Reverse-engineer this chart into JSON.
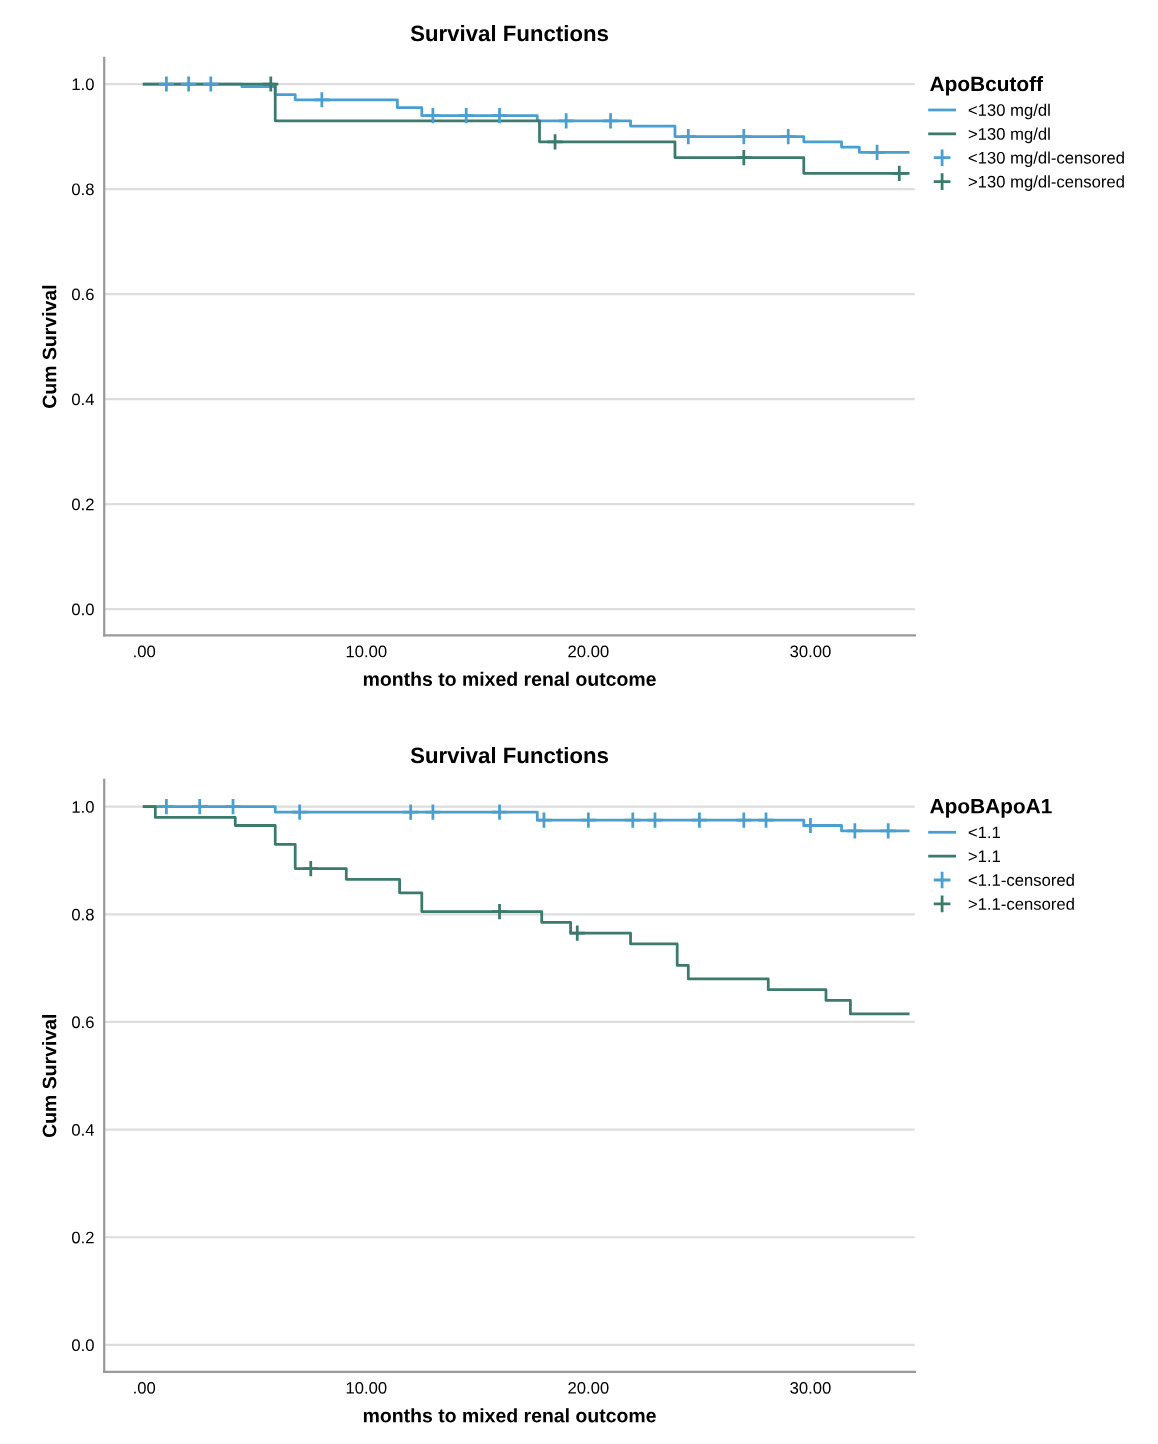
{
  "chart_data": [
    {
      "type": "step",
      "title": "Survival Functions",
      "xlabel": "months to mixed renal outcome",
      "ylabel": "Cum Survival",
      "legend_title": "ApoBcutoff",
      "legend": "right",
      "grid": "y",
      "xlim": [
        -1.8,
        34.7
      ],
      "ylim": [
        -0.05,
        1.05
      ],
      "xticks": [
        {
          "value": 0,
          "label": ".00"
        },
        {
          "value": 10,
          "label": "10.00"
        },
        {
          "value": 20,
          "label": "20.00"
        },
        {
          "value": 30,
          "label": "30.00"
        }
      ],
      "yticks": [
        {
          "value": 0,
          "label": "0.0"
        },
        {
          "value": 0.2,
          "label": "0.2"
        },
        {
          "value": 0.4,
          "label": "0.4"
        },
        {
          "value": 0.6,
          "label": "0.6"
        },
        {
          "value": 0.8,
          "label": "0.8"
        },
        {
          "value": 1,
          "label": "1.0"
        }
      ],
      "series": [
        {
          "name": "<130 mg/dl",
          "color": "#4a9fd0",
          "x": [
            0,
            4.4,
            5.9,
            6.8,
            11.4,
            12.5,
            17.7,
            21.9,
            23.9,
            29.7,
            31.4,
            32.2,
            34.4
          ],
          "values": [
            1.0,
            0.995,
            0.98,
            0.97,
            0.955,
            0.94,
            0.93,
            0.92,
            0.9,
            0.89,
            0.88,
            0.87,
            0.87
          ]
        },
        {
          "name": ">130 mg/dl",
          "color": "#3d7a6e",
          "x": [
            0,
            5.9,
            17.8,
            23.9,
            29.7,
            34.4
          ],
          "values": [
            1.0,
            0.93,
            0.89,
            0.86,
            0.83,
            0.83
          ]
        },
        {
          "name": "<130 mg/dl-censored",
          "type": "scatter",
          "marker": "cross",
          "color": "#4a9fd0",
          "x": [
            1,
            2,
            3,
            8,
            13,
            14.5,
            16,
            19,
            21,
            24.5,
            27,
            29,
            33
          ],
          "values": [
            1.0,
            1.0,
            1.0,
            0.97,
            0.94,
            0.94,
            0.94,
            0.93,
            0.93,
            0.9,
            0.9,
            0.9,
            0.87
          ]
        },
        {
          "name": ">130 mg/dl-censored",
          "type": "scatter",
          "marker": "cross",
          "color": "#3d7a6e",
          "x": [
            5.7,
            18.5,
            27,
            34
          ],
          "values": [
            1.0,
            0.89,
            0.86,
            0.83
          ]
        }
      ]
    },
    {
      "type": "step",
      "title": "Survival Functions",
      "xlabel": "months to mixed renal outcome",
      "ylabel": "Cum Survival",
      "legend_title": "ApoBApoA1",
      "legend": "right",
      "grid": "y",
      "xlim": [
        -1.8,
        34.7
      ],
      "ylim": [
        -0.05,
        1.05
      ],
      "xticks": [
        {
          "value": 0,
          "label": ".00"
        },
        {
          "value": 10,
          "label": "10.00"
        },
        {
          "value": 20,
          "label": "20.00"
        },
        {
          "value": 30,
          "label": "30.00"
        }
      ],
      "yticks": [
        {
          "value": 0,
          "label": "0.0"
        },
        {
          "value": 0.2,
          "label": "0.2"
        },
        {
          "value": 0.4,
          "label": "0.4"
        },
        {
          "value": 0.6,
          "label": "0.6"
        },
        {
          "value": 0.8,
          "label": "0.8"
        },
        {
          "value": 1,
          "label": "1.0"
        }
      ],
      "series": [
        {
          "name": "<1.1",
          "color": "#4a9fd0",
          "x": [
            0,
            5.9,
            17.7,
            29.7,
            31.4,
            34.4
          ],
          "values": [
            1.0,
            0.99,
            0.975,
            0.965,
            0.955,
            0.955
          ]
        },
        {
          "name": ">1.1",
          "color": "#3d7a6e",
          "x": [
            0,
            0.5,
            4.1,
            5.9,
            6.8,
            9.1,
            11.5,
            12.5,
            17.9,
            19.2,
            21.9,
            24.0,
            24.5,
            28.1,
            30.7,
            31.8,
            34.4
          ],
          "values": [
            1.0,
            0.98,
            0.965,
            0.93,
            0.885,
            0.865,
            0.84,
            0.805,
            0.785,
            0.765,
            0.745,
            0.705,
            0.68,
            0.66,
            0.64,
            0.615,
            0.615
          ]
        },
        {
          "name": "<1.1-censored",
          "type": "scatter",
          "marker": "cross",
          "color": "#4a9fd0",
          "x": [
            1,
            2.5,
            4,
            7,
            12,
            13,
            16,
            18,
            20,
            22,
            23,
            25,
            27,
            28,
            30,
            32,
            33.5
          ],
          "values": [
            1.0,
            1.0,
            1.0,
            0.99,
            0.99,
            0.99,
            0.99,
            0.975,
            0.975,
            0.975,
            0.975,
            0.975,
            0.975,
            0.975,
            0.965,
            0.955,
            0.955
          ]
        },
        {
          "name": ">1.1-censored",
          "type": "scatter",
          "marker": "cross",
          "color": "#3d7a6e",
          "x": [
            7.5,
            16,
            19.5
          ],
          "values": [
            0.885,
            0.805,
            0.765
          ]
        }
      ]
    }
  ]
}
